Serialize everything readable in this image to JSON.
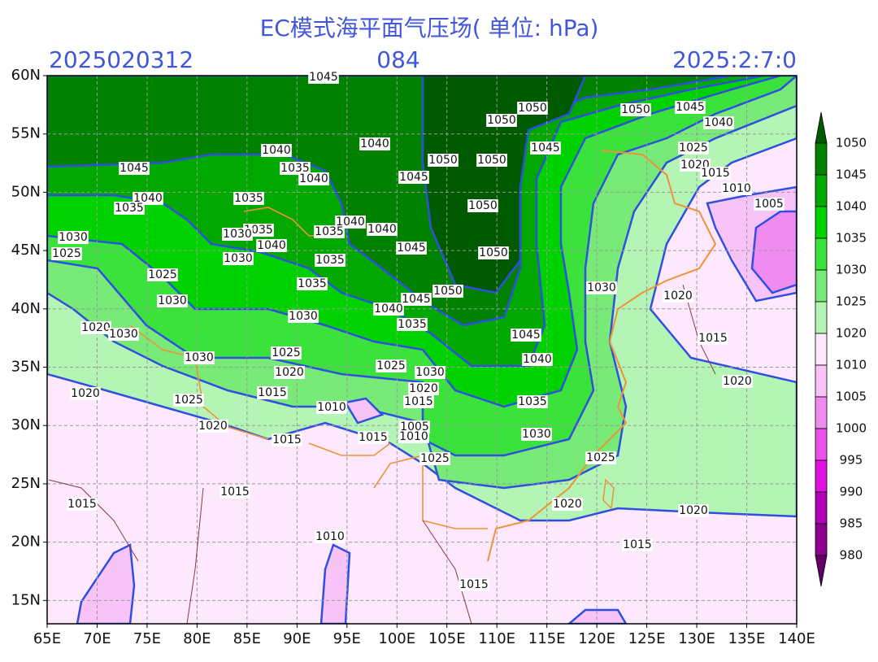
{
  "title": "EC模式海平面气压场( 单位: hPa)",
  "header": {
    "init": "2025020312",
    "lead": "084",
    "valid": "2025:2:7:0"
  },
  "map": {
    "xlim": [
      65,
      140
    ],
    "ylim": [
      13,
      60
    ],
    "xticks": [
      {
        "value": 65,
        "label": "65E"
      },
      {
        "value": 70,
        "label": "70E"
      },
      {
        "value": 75,
        "label": "75E"
      },
      {
        "value": 80,
        "label": "80E"
      },
      {
        "value": 85,
        "label": "85E"
      },
      {
        "value": 90,
        "label": "90E"
      },
      {
        "value": 95,
        "label": "95E"
      },
      {
        "value": 100,
        "label": "100E"
      },
      {
        "value": 105,
        "label": "105E"
      },
      {
        "value": 110,
        "label": "110E"
      },
      {
        "value": 115,
        "label": "115E"
      },
      {
        "value": 120,
        "label": "120E"
      },
      {
        "value": 125,
        "label": "125E"
      },
      {
        "value": 130,
        "label": "130E"
      },
      {
        "value": 135,
        "label": "135E"
      },
      {
        "value": 140,
        "label": "140E"
      }
    ],
    "yticks": [
      {
        "value": 15,
        "label": "15N"
      },
      {
        "value": 20,
        "label": "20N"
      },
      {
        "value": 25,
        "label": "25N"
      },
      {
        "value": 30,
        "label": "30N"
      },
      {
        "value": 35,
        "label": "35N"
      },
      {
        "value": 40,
        "label": "40N"
      },
      {
        "value": 45,
        "label": "45N"
      },
      {
        "value": 50,
        "label": "50N"
      },
      {
        "value": 55,
        "label": "55N"
      },
      {
        "value": 60,
        "label": "60N"
      }
    ],
    "grid": true
  },
  "colorbar": {
    "levels": [
      1050,
      1045,
      1040,
      1035,
      1030,
      1025,
      1020,
      1010,
      1005,
      1000,
      995,
      990,
      985,
      980
    ],
    "colors": [
      "#005a00",
      "#008200",
      "#00a800",
      "#00d200",
      "#3ce23c",
      "#78ea78",
      "#b4f4b4",
      "#fde8fd",
      "#f8c4f8",
      "#f08cf0",
      "#ea50ea",
      "#e010e0",
      "#b400b4",
      "#8c008c",
      "#640064"
    ]
  },
  "contour_labels": [
    1045,
    1050,
    1050,
    1045,
    1050,
    1040,
    1045,
    1040,
    1040,
    1045,
    1025,
    1035,
    1040,
    1050,
    1050,
    1045,
    1020,
    1015,
    1010,
    1040,
    1035,
    1035,
    1050,
    1005,
    1040,
    1040,
    1035,
    1030,
    1035,
    1030,
    1040,
    1025,
    1045,
    1050,
    1030,
    1035,
    1025,
    1035,
    1050,
    1030,
    1020,
    1030,
    1045,
    1040,
    1030,
    1035,
    1020,
    1030,
    1045,
    1015,
    1030,
    1025,
    1040,
    1025,
    1030,
    1020,
    1020,
    1020,
    1015,
    1020,
    1015,
    1010,
    1025,
    1035,
    1005,
    1020,
    1015,
    1015,
    1010,
    1030,
    1025,
    1025,
    1015,
    1015,
    1020,
    1020,
    1010,
    1015,
    1015
  ]
}
